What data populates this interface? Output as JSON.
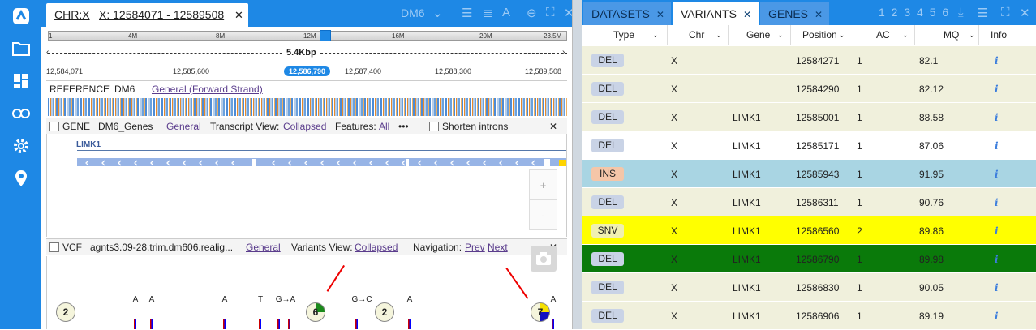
{
  "sidebar": {
    "icons": [
      "logo-icon",
      "folder-icon",
      "dashboard-icon",
      "link-icon",
      "gear-icon",
      "location-pin-icon"
    ]
  },
  "locus": {
    "chr": "CHR:X",
    "range": "X: 12584071 - 12589508",
    "genome": "DM6"
  },
  "toolbar": {
    "close": "✕"
  },
  "chromosome": {
    "ticks": [
      "1",
      "4M",
      "8M",
      "12M",
      "16M",
      "20M",
      "23.5M"
    ]
  },
  "span": "5.4Kbp",
  "ruler": {
    "ticks": [
      "12,584,071",
      "12,585,600",
      "12,587,400",
      "12,588,300",
      "12,589,508"
    ],
    "current": "12,586,790"
  },
  "reference": {
    "label": "REFERENCE",
    "genome": "DM6",
    "link": "General (Forward Strand)"
  },
  "gene_track": {
    "label": "GENE",
    "name": "DM6_Genes",
    "general": "General",
    "view_label": "Transcript View:",
    "view": "Collapsed",
    "features_label": "Features:",
    "features": "All",
    "more": "•••",
    "shorten": "Shorten introns",
    "gene_name": "LIMK1",
    "zoom_in": "+",
    "zoom_out": "-"
  },
  "vcf_track": {
    "label": "VCF",
    "name": "agnts3.09-28.trim.dm606.realig...",
    "general": "General",
    "view_label": "Variants View:",
    "view": "Collapsed",
    "nav_label": "Navigation:",
    "prev": "Prev",
    "next": "Next"
  },
  "vcf_glyphs": {
    "circles": [
      "2",
      "6",
      "2",
      "7"
    ],
    "alleles": [
      "A",
      "A",
      "A",
      "T",
      "G→A",
      "G→C",
      "A",
      "A"
    ]
  },
  "right_tabs": [
    "DATASETS",
    "VARIANTS",
    "GENES"
  ],
  "pager": "1 2 3 4 5 6",
  "columns": [
    "Type",
    "Chr",
    "Gene",
    "Position",
    "AC",
    "MQ",
    "Info"
  ],
  "rows": [
    {
      "type": "DEL",
      "chr": "X",
      "gene": "",
      "pos": "12584271",
      "ac": "1",
      "mq": "82.1"
    },
    {
      "type": "DEL",
      "chr": "X",
      "gene": "",
      "pos": "12584290",
      "ac": "1",
      "mq": "82.12"
    },
    {
      "type": "DEL",
      "chr": "X",
      "gene": "LIMK1",
      "pos": "12585001",
      "ac": "1",
      "mq": "88.58"
    },
    {
      "type": "DEL",
      "chr": "X",
      "gene": "LIMK1",
      "pos": "12585171",
      "ac": "1",
      "mq": "87.06"
    },
    {
      "type": "INS",
      "chr": "X",
      "gene": "LIMK1",
      "pos": "12585943",
      "ac": "1",
      "mq": "91.95"
    },
    {
      "type": "DEL",
      "chr": "X",
      "gene": "LIMK1",
      "pos": "12586311",
      "ac": "1",
      "mq": "90.76"
    },
    {
      "type": "SNV",
      "chr": "X",
      "gene": "LIMK1",
      "pos": "12586560",
      "ac": "2",
      "mq": "89.86"
    },
    {
      "type": "DEL",
      "chr": "X",
      "gene": "LIMK1",
      "pos": "12586790",
      "ac": "1",
      "mq": "89.98"
    },
    {
      "type": "DEL",
      "chr": "X",
      "gene": "LIMK1",
      "pos": "12586830",
      "ac": "1",
      "mq": "90.05"
    },
    {
      "type": "DEL",
      "chr": "X",
      "gene": "LIMK1",
      "pos": "12586906",
      "ac": "1",
      "mq": "89.19"
    }
  ],
  "info_glyph": "i"
}
